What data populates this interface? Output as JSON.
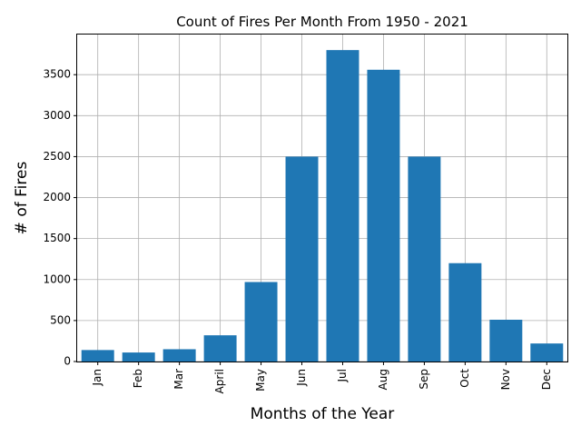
{
  "chart_data": {
    "type": "bar",
    "title": "Count of Fires Per Month From 1950 - 2021",
    "xlabel": "Months of the Year",
    "ylabel": "# of Fires",
    "categories": [
      "Jan",
      "Feb",
      "Mar",
      "April",
      "May",
      "Jun",
      "Jul",
      "Aug",
      "Sep",
      "Oct",
      "Nov",
      "Dec"
    ],
    "values": [
      140,
      110,
      150,
      320,
      970,
      2500,
      3800,
      3560,
      2500,
      1200,
      510,
      220
    ],
    "ylim": [
      0,
      3990
    ],
    "yticks": [
      0,
      500,
      1000,
      1500,
      2000,
      2500,
      3000,
      3500
    ],
    "grid": true,
    "bar_color": "#1f77b4"
  }
}
